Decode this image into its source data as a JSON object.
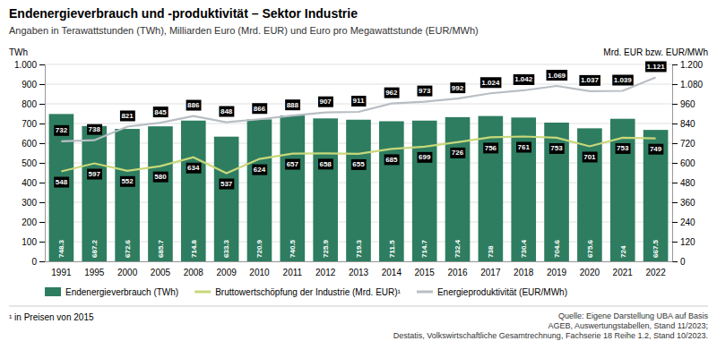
{
  "chart_data": {
    "type": "bar",
    "title": "Endenergieverbrauch und -produktivität – Sektor Industrie",
    "subtitle": "Angaben in Terawattstunden (TWh), Milliarden Euro (Mrd. EUR) und Euro pro Megawattstunde (EUR/MWh)",
    "ylabel": "TWh",
    "y2label": "Mrd. EUR bzw. EUR/MWh",
    "categories": [
      "1991",
      "1995",
      "2000",
      "2005",
      "2008",
      "2009",
      "2010",
      "2011",
      "2012",
      "2013",
      "2014",
      "2015",
      "2016",
      "2017",
      "2018",
      "2019",
      "2020",
      "2021",
      "2022"
    ],
    "series": [
      {
        "name": "Endenergieverbrauch (TWh)",
        "type": "bar",
        "color": "#2e7d60",
        "values": [
          748.3,
          687.2,
          672.6,
          685.7,
          714.8,
          633.3,
          720.9,
          740.5,
          725.9,
          719.3,
          711.5,
          714.7,
          732.4,
          738.0,
          730.4,
          704.6,
          675.6,
          724.0,
          667.5
        ]
      },
      {
        "name": "Bruttowertschöpfung der Industrie (Mrd. EUR)¹",
        "type": "line",
        "axis": "y2",
        "color": "#c8d87a",
        "values": [
          548,
          597,
          552,
          580,
          634,
          537,
          624,
          657,
          658,
          655,
          685,
          699,
          726,
          756,
          761,
          753,
          701,
          753,
          749
        ]
      },
      {
        "name": "Energieproduktivität (EUR/MWh)",
        "type": "line",
        "axis": "y2",
        "color": "#b8bec4",
        "values": [
          732,
          738,
          821,
          845,
          886,
          848,
          866,
          888,
          907,
          911,
          962,
          973,
          992,
          1024,
          1042,
          1069,
          1037,
          1039,
          1121
        ],
        "value_labels": [
          "732",
          "738",
          "821",
          "845",
          "886",
          "848",
          "866",
          "888",
          "907",
          "911",
          "962",
          "973",
          "992",
          "1.024",
          "1.042",
          "1.069",
          "1.037",
          "1.039",
          "1.121"
        ]
      }
    ],
    "ylim": [
      0,
      1000
    ],
    "yticks": [
      0,
      100,
      200,
      300,
      400,
      500,
      600,
      700,
      800,
      900,
      {
        "value": 1000,
        "label": "1.000"
      }
    ],
    "y2lim": [
      0,
      1200
    ],
    "y2ticks": [
      0,
      120,
      240,
      360,
      480,
      600,
      720,
      840,
      960,
      {
        "value": 1080,
        "label": "1.080"
      },
      {
        "value": 1200,
        "label": "1.200"
      }
    ],
    "grid": true,
    "legend": "lower left",
    "data_labels": true,
    "footnote": "¹ in Preisen von 2015",
    "source": "Quelle: Eigene Darstellung UBA auf Basis\nAGEB, Auswertungstabellen, Stand 11/2023;\nDestatis, Volkswirtschaftliche Gesamtrechnung, Fachserie 18 Reihe 1.2, Stand 10/2023."
  }
}
